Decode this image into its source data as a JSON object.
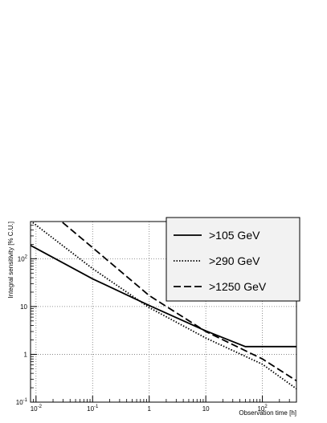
{
  "chart_data": {
    "type": "line",
    "xlabel": "Observation time [h]",
    "ylabel": "Integral sensitivity [% C.U.]",
    "xscale": "log",
    "yscale": "log",
    "xlim": [
      0.008,
      400
    ],
    "ylim": [
      0.1,
      600
    ],
    "grid": true,
    "legend_position": "top-right",
    "x_ticks": [
      {
        "value": 0.01,
        "label": "10",
        "exp": "-2"
      },
      {
        "value": 0.1,
        "label": "10",
        "exp": "-1"
      },
      {
        "value": 1,
        "label": "1",
        "exp": ""
      },
      {
        "value": 10,
        "label": "10",
        "exp": ""
      },
      {
        "value": 100,
        "label": "10",
        "exp": "2"
      }
    ],
    "y_ticks": [
      {
        "value": 0.1,
        "label": "10",
        "exp": "-1"
      },
      {
        "value": 1,
        "label": "1",
        "exp": ""
      },
      {
        "value": 10,
        "label": "10",
        "exp": ""
      },
      {
        "value": 100,
        "label": "10",
        "exp": "2"
      }
    ],
    "series": [
      {
        "name": ">105 GeV",
        "style": "solid",
        "color": "#000000",
        "points": [
          [
            0.008,
            190
          ],
          [
            0.1,
            38
          ],
          [
            1,
            10.5
          ],
          [
            10,
            3.1
          ],
          [
            50,
            1.45
          ],
          [
            400,
            1.45
          ]
        ]
      },
      {
        "name": ">290 GeV",
        "style": "dotted",
        "color": "#000000",
        "points": [
          [
            0.008,
            620
          ],
          [
            0.1,
            62
          ],
          [
            1,
            9.5
          ],
          [
            10,
            2.2
          ],
          [
            100,
            0.62
          ],
          [
            400,
            0.19
          ]
        ]
      },
      {
        "name": ">1250 GeV",
        "style": "dashed",
        "color": "#000000",
        "points": [
          [
            0.008,
            2100
          ],
          [
            0.1,
            170
          ],
          [
            1,
            17
          ],
          [
            10,
            3
          ],
          [
            100,
            0.8
          ],
          [
            400,
            0.28
          ]
        ]
      }
    ]
  }
}
